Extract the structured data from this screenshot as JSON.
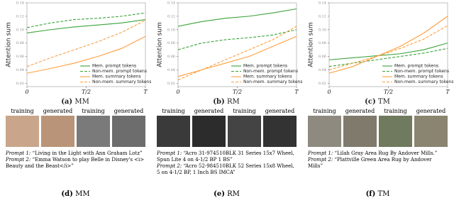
{
  "chart_data": [
    {
      "type": "line",
      "y_label": "Attention sum",
      "caption": {
        "label": "(a)",
        "name": "MM"
      },
      "x": [
        0,
        2,
        4,
        6,
        8,
        10
      ],
      "xlim": [
        0,
        10
      ],
      "xticks": [
        0,
        {
          "value": 5,
          "label": "T/2"
        },
        {
          "value": 10,
          "label": "T"
        }
      ],
      "ylim": [
        0.015,
        0.14
      ],
      "yticks": [
        0.02,
        0.04,
        0.06,
        0.08,
        {
          "value": 0.1,
          "label": "0.10"
        },
        0.12,
        0.14
      ],
      "legend": "lower right",
      "series": [
        {
          "name": "Mem. prompt tokens",
          "color": "#3aa33a",
          "style": "solid",
          "values": [
            0.095,
            0.1,
            0.104,
            0.107,
            0.11,
            0.115
          ]
        },
        {
          "name": "Non-mem. prompt tokens",
          "color": "#3aa33a",
          "style": "dashed",
          "values": [
            0.103,
            0.11,
            0.115,
            0.117,
            0.12,
            0.125
          ]
        },
        {
          "name": "Mem. summary tokens",
          "color": "#ff9e3d",
          "style": "solid",
          "values": [
            0.035,
            0.042,
            0.05,
            0.06,
            0.072,
            0.09
          ]
        },
        {
          "name": "Non-mem. summary tokens",
          "color": "#ff9e3d",
          "style": "dashed",
          "values": [
            0.045,
            0.058,
            0.07,
            0.082,
            0.096,
            0.114
          ]
        }
      ]
    },
    {
      "type": "line",
      "y_label": "Attention sum",
      "caption": {
        "label": "(b)",
        "name": "RM"
      },
      "x": [
        0,
        2,
        4,
        6,
        8,
        10
      ],
      "xlim": [
        0,
        10
      ],
      "xticks": [
        0,
        {
          "value": 5,
          "label": "T/2"
        },
        {
          "value": 10,
          "label": "T"
        }
      ],
      "ylim": [
        0.015,
        0.14
      ],
      "yticks": [
        0.02,
        0.04,
        0.06,
        0.08,
        {
          "value": 0.1,
          "label": "0.10"
        },
        0.12,
        0.14
      ],
      "legend": "lower right",
      "series": [
        {
          "name": "Mem. prompt tokens",
          "color": "#3aa33a",
          "style": "solid",
          "values": [
            0.105,
            0.112,
            0.117,
            0.12,
            0.125,
            0.131
          ]
        },
        {
          "name": "Non-mem. prompt tokens",
          "color": "#3aa33a",
          "style": "dashed",
          "values": [
            0.07,
            0.08,
            0.085,
            0.088,
            0.092,
            0.1
          ]
        },
        {
          "name": "Mem. summary tokens",
          "color": "#ff9e3d",
          "style": "solid",
          "values": [
            0.03,
            0.04,
            0.05,
            0.06,
            0.075,
            0.09
          ]
        },
        {
          "name": "Non-mem. summary tokens",
          "color": "#ff9e3d",
          "style": "dashed",
          "values": [
            0.025,
            0.04,
            0.055,
            0.07,
            0.085,
            0.105
          ]
        }
      ]
    },
    {
      "type": "line",
      "y_label": "Attention sum",
      "caption": {
        "label": "(c)",
        "name": "TM"
      },
      "x": [
        0,
        2,
        4,
        6,
        8,
        10
      ],
      "xlim": [
        0,
        10
      ],
      "xticks": [
        0,
        {
          "value": 5,
          "label": "T/2"
        },
        {
          "value": 10,
          "label": "T"
        }
      ],
      "ylim": [
        0.015,
        0.14
      ],
      "yticks": [
        0.02,
        0.04,
        0.06,
        0.08,
        {
          "value": 0.1,
          "label": "0.10"
        },
        0.12,
        0.14
      ],
      "legend": "lower right",
      "series": [
        {
          "name": "Mem. prompt tokens",
          "color": "#3aa33a",
          "style": "solid",
          "values": [
            0.055,
            0.058,
            0.061,
            0.064,
            0.07,
            0.08
          ]
        },
        {
          "name": "Non-mem. prompt tokens",
          "color": "#3aa33a",
          "style": "dashed",
          "values": [
            0.045,
            0.05,
            0.055,
            0.06,
            0.065,
            0.072
          ]
        },
        {
          "name": "Mem. summary tokens",
          "color": "#ff9e3d",
          "style": "solid",
          "values": [
            0.035,
            0.045,
            0.06,
            0.075,
            0.095,
            0.12
          ]
        },
        {
          "name": "Non-mem. summary tokens",
          "color": "#ff9e3d",
          "style": "dashed",
          "values": [
            0.04,
            0.05,
            0.06,
            0.072,
            0.086,
            0.106
          ]
        }
      ]
    }
  ],
  "panels": [
    {
      "images": [
        "training",
        "generated",
        "training",
        "generated"
      ],
      "prompts": [
        {
          "label": "Prompt 1:",
          "text": "“Living in the Light with Ann Graham Lotz”"
        },
        {
          "label": "Prompt 2:",
          "text": "“Emma Watson to play Belle in Disney's <i> Beauty and the Beast</i>”"
        }
      ],
      "caption": {
        "label": "(d)",
        "name": "MM"
      }
    },
    {
      "images": [
        "training",
        "generated",
        "training",
        "generated"
      ],
      "prompts": [
        {
          "label": "Prompt 1:",
          "text": "“Acro 31-974510BLK 31 Series 15x7 Wheel, Spun Lite 4 on 4-1/2 BP 1 BS”"
        },
        {
          "label": "Prompt 2:",
          "text": "“Acro 52-984510BLK 52 Series 15x8 Wheel, 5 on 4-1/2 BP, 1 Inch BS IMCA”"
        }
      ],
      "caption": {
        "label": "(e)",
        "name": "RM"
      }
    },
    {
      "images": [
        "training",
        "generated",
        "training",
        "generated"
      ],
      "prompts": [
        {
          "label": "Prompt 1:",
          "text": "“Lilah Gray Area Rug By Andover Mills.”"
        },
        {
          "label": "Prompt 2:",
          "text": "“Plattville Green Area Rug by Andover Mills”"
        }
      ],
      "caption": {
        "label": "(f)",
        "name": "TM"
      }
    }
  ]
}
